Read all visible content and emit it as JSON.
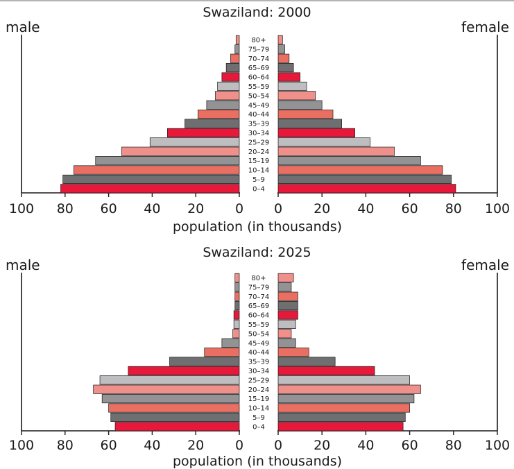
{
  "chart_data": [
    {
      "type": "bar",
      "title": "Swaziland: 2000",
      "left_label": "male",
      "right_label": "female",
      "xlabel": "population (in thousands)",
      "xlim": [
        0,
        100
      ],
      "x_ticks": [
        "100",
        "80",
        "60",
        "40",
        "20",
        "0"
      ],
      "categories": [
        "0–4",
        "5–9",
        "10–14",
        "15–19",
        "20–24",
        "25–29",
        "30–34",
        "35–39",
        "40–44",
        "45–49",
        "50–54",
        "55–59",
        "60–64",
        "65–69",
        "70–74",
        "75–79",
        "80+"
      ],
      "series": [
        {
          "name": "male",
          "values": [
            82,
            81,
            76,
            66,
            54,
            41,
            33,
            25,
            19,
            15,
            11,
            10,
            8,
            6,
            4,
            2,
            1.5
          ]
        },
        {
          "name": "female",
          "values": [
            81,
            79,
            75,
            65,
            53,
            42,
            35,
            29,
            25,
            20,
            17,
            13,
            10,
            7,
            5,
            3,
            2
          ]
        }
      ]
    },
    {
      "type": "bar",
      "title": "Swaziland: 2025",
      "left_label": "male",
      "right_label": "female",
      "xlabel": "population (in thousands)",
      "xlim": [
        0,
        100
      ],
      "x_ticks": [
        "100",
        "80",
        "60",
        "40",
        "20",
        "0"
      ],
      "categories": [
        "0–4",
        "5–9",
        "10–14",
        "15–19",
        "20–24",
        "25–29",
        "30–34",
        "35–39",
        "40–44",
        "45–49",
        "50–54",
        "55–59",
        "60–64",
        "65–69",
        "70–74",
        "75–79",
        "80+"
      ],
      "series": [
        {
          "name": "male",
          "values": [
            57,
            59,
            60,
            63,
            67,
            64,
            51,
            32,
            16,
            8,
            3,
            2.5,
            2.5,
            2,
            2,
            2,
            2
          ]
        },
        {
          "name": "female",
          "values": [
            57,
            58,
            60,
            62,
            65,
            60,
            44,
            26,
            14,
            8,
            6,
            8,
            9,
            9,
            9,
            6,
            7
          ]
        }
      ]
    }
  ],
  "colors": {
    "bar_cycle": [
      "#e8183a",
      "#6f6f72",
      "#ea6f63",
      "#939396",
      "#f0908a",
      "#bebec0"
    ],
    "axis": "#1a1a1a"
  }
}
